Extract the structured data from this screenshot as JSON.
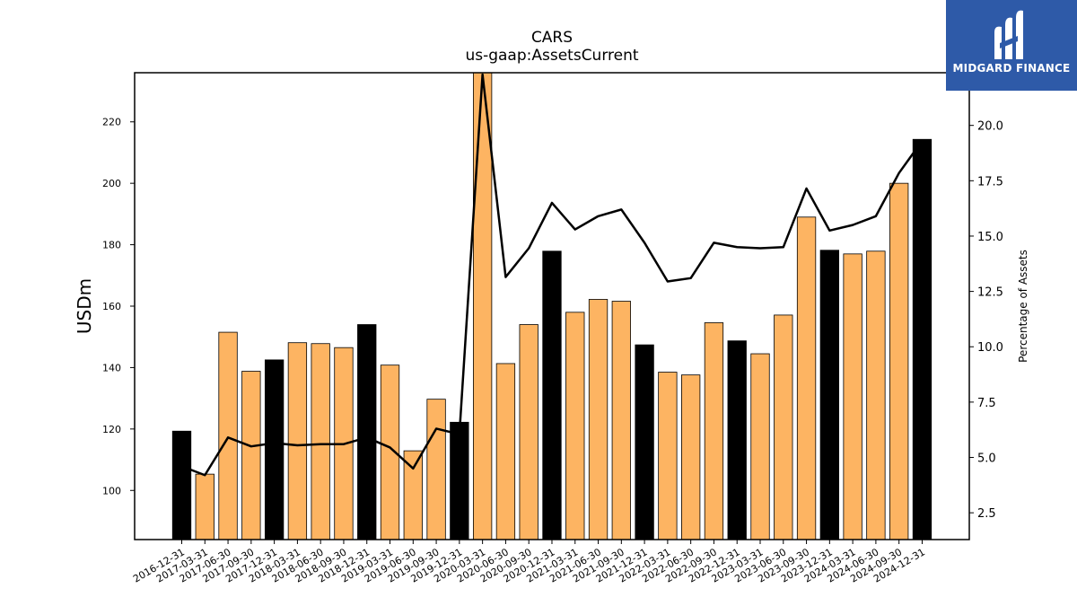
{
  "chart_data": {
    "type": "bar",
    "title": "CARS",
    "subtitle": "us-gaap:AssetsCurrent",
    "ylabel": "USDm",
    "y2label": "Percentage of Assets",
    "ylim": [
      84,
      236
    ],
    "y2lim": [
      1.29,
      22.38
    ],
    "yticks": [
      100,
      120,
      140,
      160,
      180,
      200,
      220
    ],
    "y2ticks": [
      2.5,
      5.0,
      7.5,
      10.0,
      12.5,
      15.0,
      17.5,
      20.0
    ],
    "categories": [
      "2016-12-31",
      "2017-03-31",
      "2017-06-30",
      "2017-09-30",
      "2017-12-31",
      "2018-03-31",
      "2018-06-30",
      "2018-09-30",
      "2018-12-31",
      "2019-03-31",
      "2019-06-30",
      "2019-09-30",
      "2019-12-31",
      "2020-03-31",
      "2020-06-30",
      "2020-09-30",
      "2020-12-31",
      "2021-03-31",
      "2021-06-30",
      "2021-09-30",
      "2021-12-31",
      "2022-03-31",
      "2022-06-30",
      "2022-09-30",
      "2022-12-31",
      "2023-03-31",
      "2023-06-30",
      "2023-09-30",
      "2023-12-31",
      "2024-03-31",
      "2024-06-30",
      "2024-09-30",
      "2024-12-31"
    ],
    "series": [
      {
        "kind": "bar",
        "values": [
          119.3,
          105.3,
          151.5,
          138.8,
          142.5,
          148.1,
          147.8,
          146.5,
          154.0,
          140.8,
          112.9,
          129.7,
          122.2,
          236.0,
          141.3,
          154.0,
          177.9,
          158.0,
          162.2,
          161.6,
          147.4,
          138.5,
          137.6,
          154.6,
          148.7,
          144.5,
          157.1,
          189.0,
          178.2,
          177.0,
          177.9,
          200.0,
          214.3
        ]
      },
      {
        "kind": "line",
        "axis": "right",
        "values": [
          4.6,
          4.2,
          5.9,
          5.5,
          5.65,
          5.55,
          5.6,
          5.6,
          5.9,
          5.45,
          4.5,
          6.3,
          6.05,
          22.3,
          13.15,
          14.45,
          16.5,
          15.3,
          15.9,
          16.2,
          14.7,
          12.95,
          13.1,
          14.7,
          14.5,
          14.45,
          14.5,
          17.15,
          15.25,
          15.5,
          15.9,
          17.85,
          19.3
        ]
      }
    ],
    "annual_color": "#000000",
    "quarter_color": "#FDB462",
    "line_color": "#000000",
    "grid": false
  },
  "logo": {
    "text": "MIDGARD FINANCE",
    "bg": "#2e5aa8"
  }
}
